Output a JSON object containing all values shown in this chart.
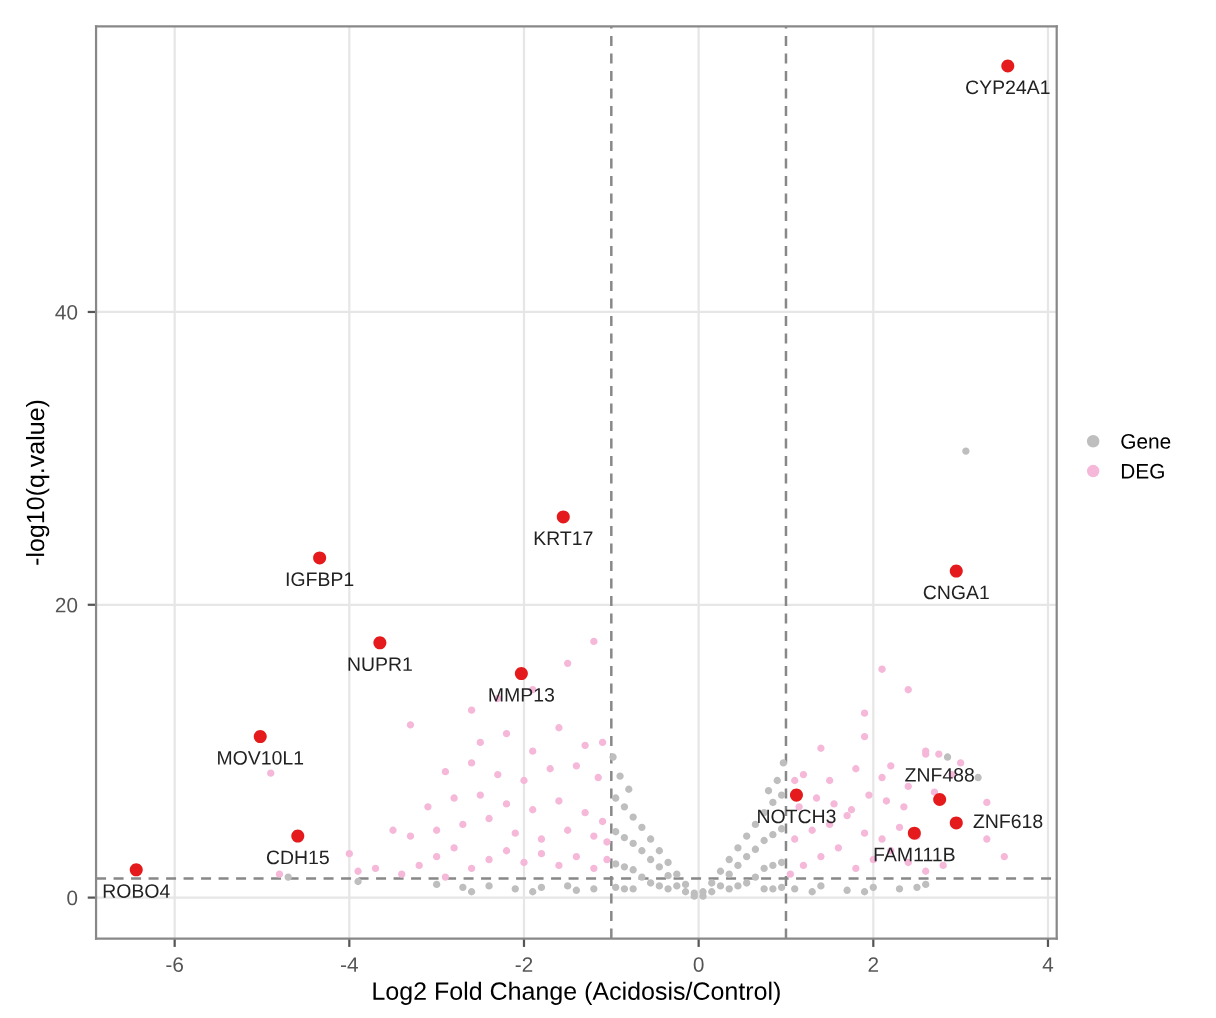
{
  "chart_data": {
    "type": "scatter",
    "xlabel": "Log2 Fold Change (Acidosis/Control)",
    "ylabel": "-log10(q.value)",
    "xlim": [
      -6.9,
      4.1
    ],
    "ylim": [
      -2.8,
      59.5
    ],
    "xticks": [
      -6,
      -4,
      -2,
      0,
      2,
      4
    ],
    "yticks": [
      0,
      20,
      40
    ],
    "grid": true,
    "legend": "right",
    "marker": "circle",
    "series": [
      {
        "name": "Gene",
        "color": "#bebebe",
        "x": [
          -0.95,
          -0.95,
          -0.95,
          -0.95,
          -0.85,
          -0.85,
          -0.85,
          -0.85,
          -0.75,
          -0.75,
          -0.75,
          -0.75,
          -0.65,
          -0.65,
          -0.65,
          -0.55,
          -0.55,
          -0.55,
          -0.45,
          -0.45,
          -0.45,
          -0.35,
          -0.35,
          -0.35,
          -0.25,
          -0.25,
          -0.15,
          -0.15,
          -0.05,
          -0.05,
          0.05,
          0.05,
          0.15,
          0.15,
          0.25,
          0.25,
          0.35,
          0.35,
          0.35,
          0.45,
          0.45,
          0.45,
          0.55,
          0.55,
          0.55,
          0.65,
          0.65,
          0.65,
          0.75,
          0.75,
          0.75,
          0.75,
          0.85,
          0.85,
          0.85,
          0.85,
          0.95,
          0.95,
          0.95,
          0.95,
          -0.9,
          -0.8,
          -0.98,
          0.9,
          0.8,
          0.97,
          -3.0,
          -2.7,
          -2.4,
          -2.1,
          -1.8,
          -1.5,
          -1.2,
          -2.6,
          -1.9,
          -1.4,
          1.1,
          1.4,
          1.7,
          2.0,
          2.3,
          2.6,
          1.3,
          1.9,
          2.5,
          3.06,
          -4.7,
          -3.9,
          2.85,
          3.2
        ],
        "values": [
          6.8,
          4.5,
          2.3,
          0.7,
          6.2,
          4.1,
          2.1,
          0.6,
          5.5,
          3.7,
          1.9,
          0.6,
          4.8,
          3.2,
          1.4,
          4.0,
          2.6,
          1.0,
          3.2,
          2.1,
          0.8,
          2.4,
          1.5,
          0.6,
          1.6,
          0.8,
          0.9,
          0.4,
          0.3,
          0.1,
          0.4,
          0.1,
          1.0,
          0.4,
          1.8,
          0.8,
          2.6,
          1.6,
          0.6,
          3.4,
          2.2,
          0.8,
          4.2,
          2.8,
          1.0,
          5.0,
          3.3,
          1.4,
          5.8,
          3.9,
          2.0,
          0.6,
          6.5,
          4.3,
          2.2,
          0.6,
          7.0,
          4.7,
          2.4,
          0.7,
          8.3,
          7.4,
          9.6,
          8.0,
          7.3,
          9.2,
          0.9,
          0.7,
          0.8,
          0.6,
          0.7,
          0.8,
          0.6,
          0.4,
          0.4,
          0.5,
          0.6,
          0.8,
          0.5,
          0.7,
          0.6,
          0.9,
          0.4,
          0.4,
          0.7,
          30.5,
          1.4,
          1.1,
          9.6,
          8.2
        ]
      },
      {
        "name": "DEG",
        "color": "#f5b8d9",
        "x": [
          -3.4,
          -3.2,
          -3.0,
          -2.8,
          -2.6,
          -2.4,
          -2.2,
          -2.0,
          -1.8,
          -1.6,
          -1.4,
          -1.2,
          -1.05,
          -3.3,
          -3.0,
          -2.7,
          -2.4,
          -2.1,
          -1.8,
          -1.5,
          -1.2,
          -1.05,
          -3.1,
          -2.8,
          -2.5,
          -2.2,
          -1.9,
          -1.6,
          -1.3,
          -1.1,
          -2.9,
          -2.6,
          -2.3,
          -2.0,
          -1.7,
          -1.4,
          -1.15,
          -2.5,
          -2.2,
          -1.9,
          -1.6,
          -1.3,
          -4.0,
          -3.7,
          -3.5,
          -4.9,
          -3.3,
          -2.6,
          -2.3,
          -1.9,
          -1.5,
          -1.2,
          -1.1,
          -4.8,
          -3.9,
          -2.9,
          1.05,
          1.2,
          1.4,
          1.6,
          1.8,
          2.0,
          2.2,
          2.4,
          2.6,
          2.8,
          1.1,
          1.3,
          1.5,
          1.7,
          1.9,
          2.1,
          2.3,
          2.5,
          1.15,
          1.35,
          1.55,
          1.75,
          1.95,
          2.15,
          2.35,
          1.2,
          1.5,
          1.8,
          2.1,
          2.4,
          2.7,
          1.9,
          2.2,
          2.6,
          2.9,
          3.3,
          3.5,
          1.9,
          2.1,
          2.4,
          2.6,
          2.75,
          3.0,
          1.4,
          3.3,
          1.1
        ],
        "values": [
          1.6,
          2.2,
          2.8,
          3.4,
          2.0,
          2.6,
          3.2,
          2.4,
          3.0,
          2.2,
          2.8,
          2.0,
          2.6,
          4.2,
          4.6,
          5.0,
          5.4,
          4.4,
          4.0,
          4.6,
          4.2,
          3.8,
          6.2,
          6.8,
          7.0,
          6.4,
          6.0,
          6.6,
          5.8,
          5.2,
          8.6,
          9.2,
          8.4,
          8.0,
          8.8,
          9.0,
          8.2,
          10.6,
          11.2,
          10.0,
          11.6,
          10.4,
          3.0,
          2.0,
          4.6,
          8.5,
          11.8,
          12.8,
          13.6,
          14.2,
          16.0,
          17.5,
          10.6,
          1.6,
          1.8,
          1.4,
          1.6,
          2.2,
          2.8,
          3.4,
          2.0,
          2.6,
          3.2,
          2.4,
          1.8,
          2.2,
          4.0,
          4.6,
          5.0,
          5.6,
          4.4,
          4.0,
          4.8,
          4.2,
          6.2,
          6.8,
          6.4,
          6.0,
          7.0,
          6.6,
          6.2,
          8.4,
          8.0,
          8.8,
          8.2,
          7.6,
          7.2,
          11.0,
          9.0,
          9.8,
          8.4,
          6.5,
          2.8,
          12.6,
          15.6,
          14.2,
          10.0,
          9.8,
          9.2,
          10.2,
          4.0,
          8.0
        ]
      },
      {
        "color": "#e41a1c",
        "x": [
          3.54,
          2.95,
          -1.55,
          -4.34,
          -3.65,
          -2.03,
          -5.02,
          -4.59,
          -6.44,
          1.12,
          2.76,
          2.95,
          2.47
        ],
        "values": [
          56.8,
          22.3,
          26.0,
          23.2,
          17.4,
          15.3,
          11.0,
          4.2,
          1.9,
          7.0,
          6.7,
          5.1,
          4.4
        ]
      }
    ],
    "annotations": [
      {
        "text": "CYP24A1",
        "x": 3.54,
        "y": 56.8
      },
      {
        "text": "CNGA1",
        "x": 2.95,
        "y": 22.3
      },
      {
        "text": "KRT17",
        "x": -1.55,
        "y": 26.0
      },
      {
        "text": "IGFBP1",
        "x": -4.34,
        "y": 23.2
      },
      {
        "text": "NUPR1",
        "x": -3.65,
        "y": 17.4
      },
      {
        "text": "MMP13",
        "x": -2.03,
        "y": 15.3
      },
      {
        "text": "MOV10L1",
        "x": -5.02,
        "y": 11.0
      },
      {
        "text": "CDH15",
        "x": -4.59,
        "y": 4.2
      },
      {
        "text": "ROBO4",
        "x": -6.44,
        "y": 1.9
      },
      {
        "text": "NOTCH3",
        "x": 1.12,
        "y": 7.0
      },
      {
        "text": "ZNF488",
        "x": 2.76,
        "y": 6.7
      },
      {
        "text": "ZNF618",
        "x": 2.95,
        "y": 5.1
      },
      {
        "text": "FAM111B",
        "x": 2.47,
        "y": 4.4
      }
    ],
    "ref_lines": [
      {
        "axis": "x",
        "value": -1,
        "color": "#888888",
        "line_style": "dashed"
      },
      {
        "axis": "x",
        "value": 1,
        "color": "#888888",
        "line_style": "dashed"
      },
      {
        "axis": "y",
        "value": 1.3,
        "color": "#888888",
        "line_style": "dashed"
      }
    ]
  }
}
